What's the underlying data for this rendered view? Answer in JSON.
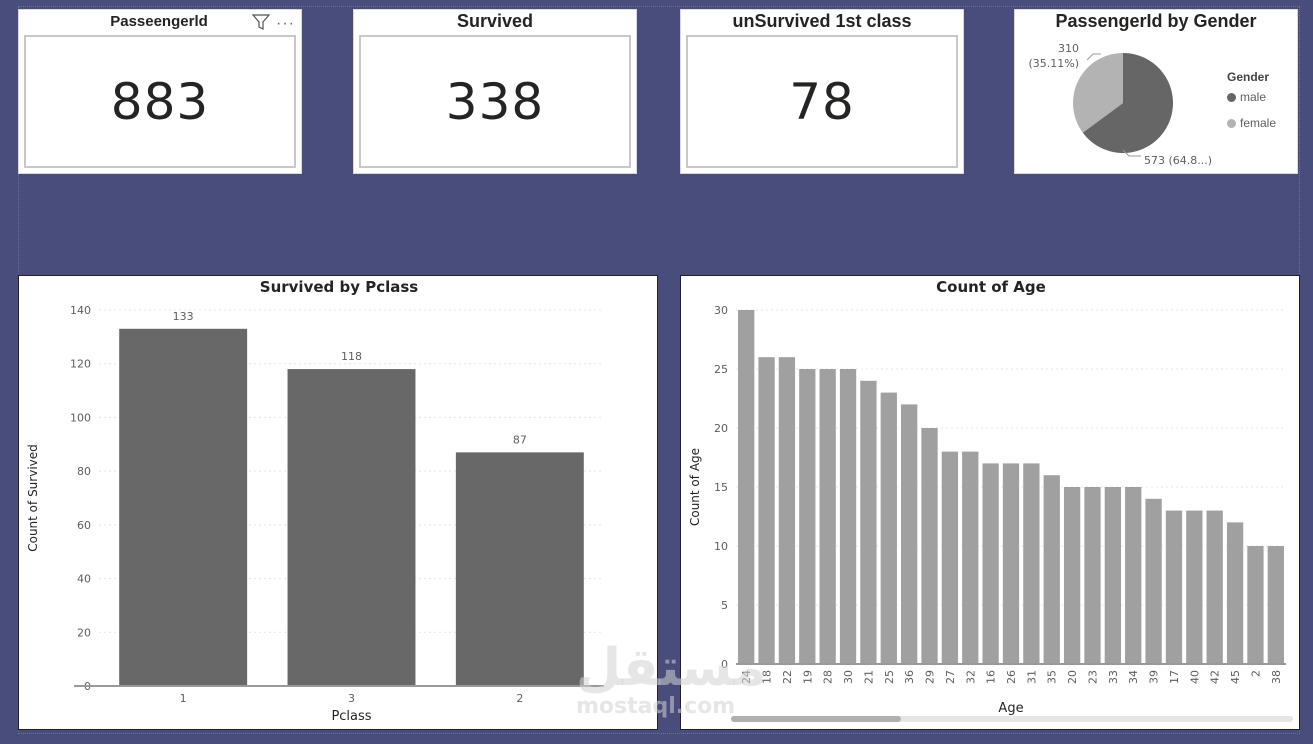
{
  "kpis": [
    {
      "title": "Passeengerld",
      "value": "883"
    },
    {
      "title": "Survived",
      "value": "338"
    },
    {
      "title": "unSurvived 1st class",
      "value": "78"
    }
  ],
  "pie": {
    "title": "PassengerId by Gender",
    "legend_title": "Gender",
    "legend": [
      "male",
      "female"
    ],
    "female_label_count": "310",
    "female_label_pct": "(35.11%)",
    "male_label": "573 (64.8...)"
  },
  "watermark": {
    "arabic": "مستقل",
    "latin": "mostaql.com"
  },
  "colors": {
    "dark_bar": "#686868",
    "light_bar": "#a0a0a0",
    "male": "#666666",
    "female": "#b3b3b3"
  },
  "chart_data": [
    {
      "type": "bar",
      "title": "Survived by Pclass",
      "xlabel": "Pclass",
      "ylabel": "Count of Survived",
      "categories": [
        "1",
        "3",
        "2"
      ],
      "values": [
        133,
        118,
        87
      ],
      "ylim": [
        0,
        140
      ],
      "yticks": [
        0,
        20,
        40,
        60,
        80,
        100,
        120,
        140
      ]
    },
    {
      "type": "bar",
      "title": "Count of Age",
      "xlabel": "Age",
      "ylabel": "Count of Age",
      "categories": [
        "24",
        "18",
        "22",
        "19",
        "28",
        "30",
        "21",
        "25",
        "36",
        "29",
        "27",
        "32",
        "16",
        "26",
        "31",
        "35",
        "20",
        "23",
        "33",
        "34",
        "39",
        "17",
        "40",
        "42",
        "45",
        "2",
        "38"
      ],
      "values": [
        30,
        26,
        26,
        25,
        25,
        25,
        24,
        23,
        22,
        20,
        18,
        18,
        17,
        17,
        17,
        16,
        15,
        15,
        15,
        15,
        14,
        13,
        13,
        13,
        12,
        10,
        10
      ],
      "ylim": [
        0,
        30
      ],
      "yticks": [
        0,
        5,
        10,
        15,
        20,
        25,
        30
      ]
    },
    {
      "type": "pie",
      "title": "PassengerId by Gender",
      "categories": [
        "male",
        "female"
      ],
      "values": [
        573,
        310
      ],
      "percents": [
        64.89,
        35.11
      ]
    }
  ]
}
